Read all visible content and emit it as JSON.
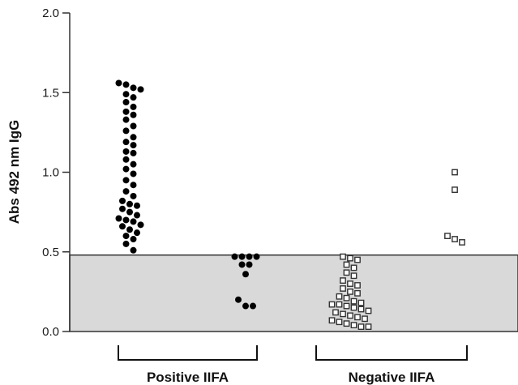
{
  "chart_data": {
    "type": "scatter",
    "title": "",
    "ylabel": "Abs 492 nm IgG",
    "ylim": [
      0,
      2
    ],
    "yticks": [
      "0.0",
      "0.5",
      "1.0",
      "1.5",
      "2.0"
    ],
    "yticks_values": [
      0,
      0.5,
      1.0,
      1.5,
      2.0
    ],
    "cutoff": 0.48,
    "shaded_region": [
      0,
      0.48
    ],
    "groups": [
      {
        "label": "Positive IIFA"
      },
      {
        "label": "Negative IIFA"
      }
    ],
    "colors": {
      "shade": "#d9d9d9",
      "filled": "#000000",
      "open_stroke": "#333333",
      "axis": "#333333"
    },
    "series": [
      {
        "marker": "filled-circle",
        "group": 0,
        "column": 0,
        "values": [
          1.56,
          1.55,
          1.53,
          1.52,
          1.49,
          1.47,
          1.44,
          1.41,
          1.38,
          1.36,
          1.33,
          1.29,
          1.26,
          1.22,
          1.19,
          1.17,
          1.13,
          1.12,
          1.08,
          1.05,
          1.02,
          0.99,
          0.95,
          0.92,
          0.88,
          0.85,
          0.82,
          0.8,
          0.79,
          0.77,
          0.75,
          0.73,
          0.71,
          0.7,
          0.69,
          0.67,
          0.66,
          0.64,
          0.62,
          0.6,
          0.58,
          0.55,
          0.51
        ]
      },
      {
        "marker": "filled-circle",
        "group": 0,
        "column": 1,
        "values": [
          0.47,
          0.47,
          0.47,
          0.47,
          0.42,
          0.42,
          0.36,
          0.2,
          0.16,
          0.16
        ]
      },
      {
        "marker": "open-square",
        "group": 1,
        "column": 0,
        "values": [
          0.47,
          0.46,
          0.45,
          0.42,
          0.4,
          0.37,
          0.35,
          0.32,
          0.3,
          0.29,
          0.27,
          0.25,
          0.24,
          0.22,
          0.21,
          0.19,
          0.18,
          0.17,
          0.17,
          0.16,
          0.15,
          0.14,
          0.13,
          0.12,
          0.11,
          0.1,
          0.09,
          0.08,
          0.07,
          0.06,
          0.05,
          0.04,
          0.03,
          0.03
        ]
      },
      {
        "marker": "open-square",
        "group": 1,
        "column": 1,
        "values": [
          1.0,
          0.89,
          0.6,
          0.58,
          0.56
        ]
      }
    ]
  }
}
